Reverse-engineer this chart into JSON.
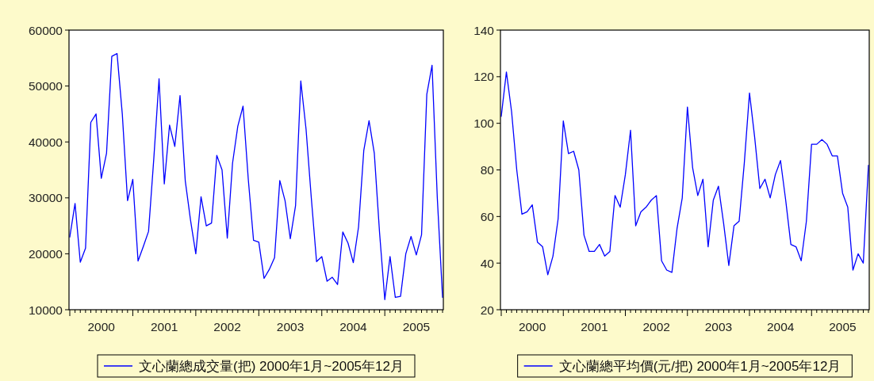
{
  "chart_data": [
    {
      "type": "line",
      "x": [
        "2000-01",
        "2000-02",
        "2000-03",
        "2000-04",
        "2000-05",
        "2000-06",
        "2000-07",
        "2000-08",
        "2000-09",
        "2000-10",
        "2000-11",
        "2000-12",
        "2001-01",
        "2001-02",
        "2001-03",
        "2001-04",
        "2001-05",
        "2001-06",
        "2001-07",
        "2001-08",
        "2001-09",
        "2001-10",
        "2001-11",
        "2001-12",
        "2002-01",
        "2002-02",
        "2002-03",
        "2002-04",
        "2002-05",
        "2002-06",
        "2002-07",
        "2002-08",
        "2002-09",
        "2002-10",
        "2002-11",
        "2002-12",
        "2003-01",
        "2003-02",
        "2003-03",
        "2003-04",
        "2003-05",
        "2003-06",
        "2003-07",
        "2003-08",
        "2003-09",
        "2003-10",
        "2003-11",
        "2003-12",
        "2004-01",
        "2004-02",
        "2004-03",
        "2004-04",
        "2004-05",
        "2004-06",
        "2004-07",
        "2004-08",
        "2004-09",
        "2004-10",
        "2004-11",
        "2004-12",
        "2005-01",
        "2005-02",
        "2005-03",
        "2005-04",
        "2005-05",
        "2005-06",
        "2005-07",
        "2005-08",
        "2005-09",
        "2005-10",
        "2005-11",
        "2005-12"
      ],
      "series": [
        {
          "name": "文心蘭總成交量(把) 2000年1月~2005年12月",
          "color": "#0000ff",
          "values": [
            23000,
            29000,
            18500,
            21000,
            43500,
            45000,
            33500,
            38000,
            55300,
            55800,
            45000,
            29500,
            33300,
            18700,
            21300,
            24000,
            37000,
            51300,
            32500,
            43000,
            39200,
            48300,
            33000,
            26000,
            20000,
            30200,
            25000,
            25500,
            37600,
            35000,
            22800,
            36200,
            42800,
            46400,
            33300,
            22400,
            22100,
            15600,
            17200,
            19300,
            33100,
            29500,
            22700,
            28600,
            50900,
            42300,
            30000,
            18600,
            19500,
            15100,
            15800,
            14500,
            23900,
            21900,
            18400,
            24800,
            38500,
            43800,
            38000,
            23800,
            11800,
            19500,
            12200,
            12400,
            20000,
            23100,
            19800,
            23400,
            48500,
            53700,
            30000,
            12200
          ]
        }
      ],
      "xlim": [
        "2000-01",
        "2005-12"
      ],
      "ylim": [
        10000,
        60000
      ],
      "yticks": [
        10000,
        20000,
        30000,
        40000,
        50000,
        60000
      ],
      "xticks": [
        {
          "value": "2000-07",
          "label": "2000"
        },
        {
          "value": "2001-07",
          "label": "2001"
        },
        {
          "value": "2002-07",
          "label": "2002"
        },
        {
          "value": "2003-07",
          "label": "2003"
        },
        {
          "value": "2004-07",
          "label": "2004"
        },
        {
          "value": "2005-07",
          "label": "2005"
        }
      ],
      "legend": "bottom"
    },
    {
      "type": "line",
      "x": [
        "2000-01",
        "2000-02",
        "2000-03",
        "2000-04",
        "2000-05",
        "2000-06",
        "2000-07",
        "2000-08",
        "2000-09",
        "2000-10",
        "2000-11",
        "2000-12",
        "2001-01",
        "2001-02",
        "2001-03",
        "2001-04",
        "2001-05",
        "2001-06",
        "2001-07",
        "2001-08",
        "2001-09",
        "2001-10",
        "2001-11",
        "2001-12",
        "2002-01",
        "2002-02",
        "2002-03",
        "2002-04",
        "2002-05",
        "2002-06",
        "2002-07",
        "2002-08",
        "2002-09",
        "2002-10",
        "2002-11",
        "2002-12",
        "2003-01",
        "2003-02",
        "2003-03",
        "2003-04",
        "2003-05",
        "2003-06",
        "2003-07",
        "2003-08",
        "2003-09",
        "2003-10",
        "2003-11",
        "2003-12",
        "2004-01",
        "2004-02",
        "2004-03",
        "2004-04",
        "2004-05",
        "2004-06",
        "2004-07",
        "2004-08",
        "2004-09",
        "2004-10",
        "2004-11",
        "2004-12",
        "2005-01",
        "2005-02",
        "2005-03",
        "2005-04",
        "2005-05",
        "2005-06",
        "2005-07",
        "2005-08",
        "2005-09",
        "2005-10",
        "2005-11",
        "2005-12"
      ],
      "series": [
        {
          "name": "文心蘭總平均價(元/把) 2000年1月~2005年12月",
          "color": "#0000ff",
          "values": [
            103,
            122,
            105,
            80,
            61,
            62,
            65,
            49,
            47,
            35,
            43,
            59,
            101,
            87,
            88,
            80,
            52,
            45,
            45,
            48,
            43,
            45,
            69,
            64,
            78,
            97,
            56,
            62,
            64,
            67,
            69,
            41,
            37,
            36,
            55,
            68,
            107,
            81,
            69,
            76,
            47,
            67,
            73,
            57,
            39,
            56,
            58,
            83,
            113,
            94,
            72,
            76,
            68,
            78,
            84,
            67,
            48,
            47,
            41,
            58,
            91,
            91,
            93,
            91,
            86,
            86,
            70,
            64,
            37,
            44,
            40,
            82
          ]
        }
      ],
      "xlim": [
        "2000-01",
        "2005-12"
      ],
      "ylim": [
        20,
        140
      ],
      "yticks": [
        20,
        40,
        60,
        80,
        100,
        120,
        140
      ],
      "xticks": [
        {
          "value": "2000-07",
          "label": "2000"
        },
        {
          "value": "2001-07",
          "label": "2001"
        },
        {
          "value": "2002-07",
          "label": "2002"
        },
        {
          "value": "2003-07",
          "label": "2003"
        },
        {
          "value": "2004-07",
          "label": "2004"
        },
        {
          "value": "2005-07",
          "label": "2005"
        }
      ],
      "legend": "bottom"
    }
  ]
}
